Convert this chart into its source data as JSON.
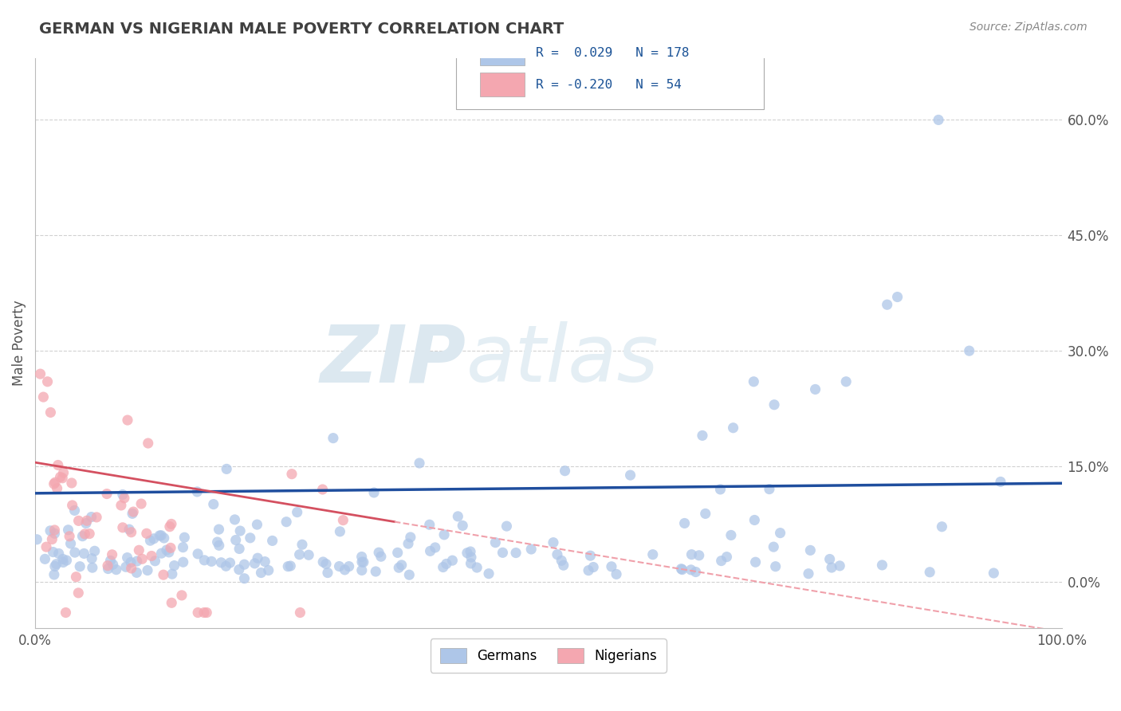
{
  "title": "GERMAN VS NIGERIAN MALE POVERTY CORRELATION CHART",
  "source": "Source: ZipAtlas.com",
  "ylabel": "Male Poverty",
  "xlim": [
    0.0,
    1.0
  ],
  "ylim": [
    -0.06,
    0.68
  ],
  "yticks": [
    0.0,
    0.15,
    0.3,
    0.45,
    0.6
  ],
  "ytick_labels": [
    "0.0%",
    "15.0%",
    "30.0%",
    "45.0%",
    "60.0%"
  ],
  "xtick_labels": [
    "0.0%",
    "100.0%"
  ],
  "german_R": 0.029,
  "german_N": 178,
  "nigerian_R": -0.22,
  "nigerian_N": 54,
  "german_color": "#aec6e8",
  "nigerian_color": "#f4a7b0",
  "german_line_color": "#1f4e9e",
  "nigerian_line_solid_color": "#d45060",
  "nigerian_line_dash_color": "#f0a0aa",
  "background_color": "#ffffff",
  "grid_color": "#cccccc",
  "title_color": "#404040",
  "legend_text_color": "#1a5296"
}
